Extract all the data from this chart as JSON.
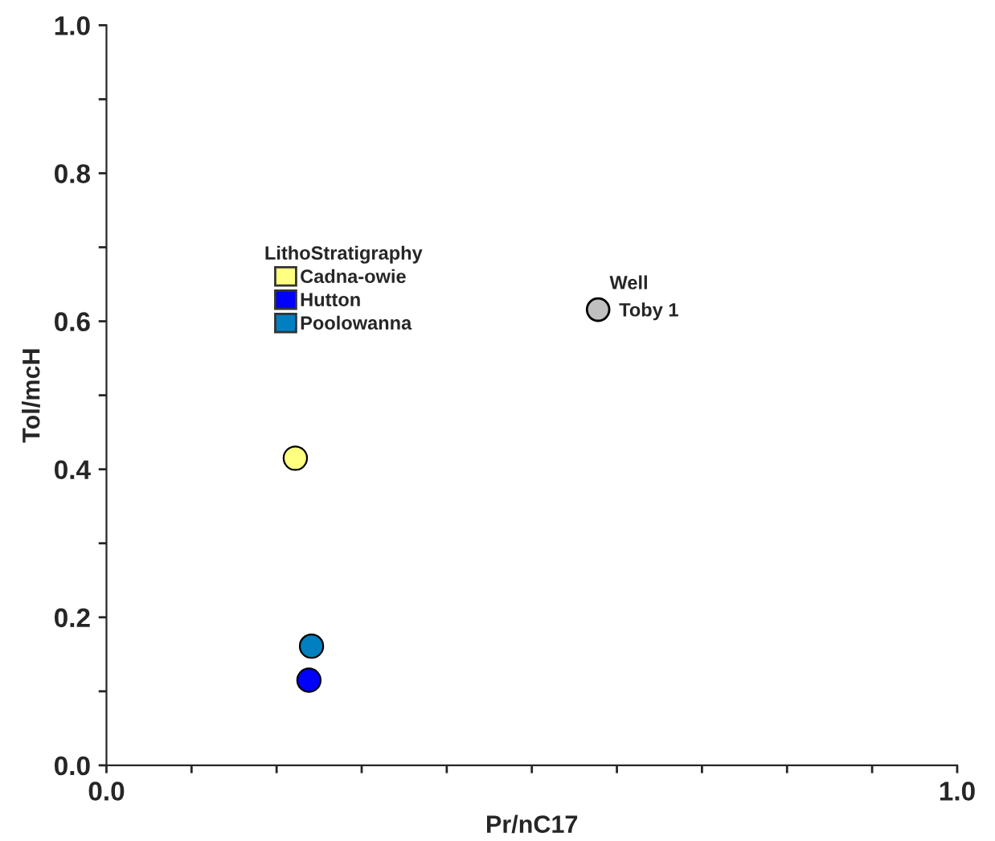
{
  "chart_data": {
    "type": "scatter",
    "xlabel": "Pr/nC17",
    "ylabel": "Tol/mcH",
    "legend_title": "LithoStratigraphy",
    "series": [
      {
        "name": "Cadna-owie",
        "color": "#ffff80",
        "x": [
          0.222
        ],
        "values": [
          0.415
        ]
      },
      {
        "name": "Hutton",
        "color": "#0000ff",
        "x": [
          0.238
        ],
        "values": [
          0.115
        ]
      },
      {
        "name": "Poolowanna",
        "color": "#0080c0",
        "x": [
          0.241
        ],
        "values": [
          0.161
        ]
      }
    ],
    "marker": "circle",
    "legend": "top left",
    "grid": false,
    "annotations": [
      "Well",
      "Toby 1"
    ],
    "xlim": [
      0,
      1
    ],
    "ylim": [
      0,
      1
    ],
    "xticks": [
      {
        "value": 0,
        "label": "0.0"
      },
      {
        "value": 0.1,
        "label": null
      },
      {
        "value": 0.2,
        "label": null
      },
      {
        "value": 0.3,
        "label": null
      },
      {
        "value": 0.4,
        "label": null
      },
      {
        "value": 0.5,
        "label": null
      },
      {
        "value": 0.6,
        "label": null
      },
      {
        "value": 0.7,
        "label": null
      },
      {
        "value": 0.8,
        "label": null
      },
      {
        "value": 0.9,
        "label": null
      },
      {
        "value": 1,
        "label": "1.0"
      }
    ],
    "yticks": [
      {
        "value": 0,
        "label": "0.0"
      },
      {
        "value": 0.1,
        "label": null
      },
      {
        "value": 0.2,
        "label": "0.2"
      },
      {
        "value": 0.3,
        "label": null
      },
      {
        "value": 0.4,
        "label": "0.4"
      },
      {
        "value": 0.5,
        "label": null
      },
      {
        "value": 0.6,
        "label": "0.6"
      },
      {
        "value": 0.7,
        "label": null
      },
      {
        "value": 0.8,
        "label": "0.8"
      },
      {
        "value": 0.9,
        "label": null
      },
      {
        "value": 1,
        "label": "1.0"
      }
    ]
  }
}
